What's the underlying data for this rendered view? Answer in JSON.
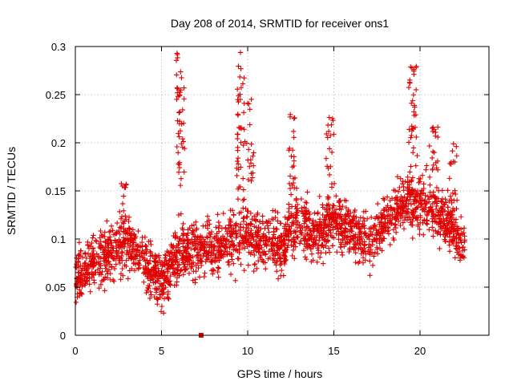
{
  "chart_data": {
    "type": "scatter",
    "title": "Day 208 of 2014, SRMTID for receiver ons1",
    "xlabel": "GPS time / hours",
    "ylabel": "SRMTID / TECUs",
    "xlim": [
      0,
      24
    ],
    "ylim": [
      0,
      0.3
    ],
    "x_ticks": [
      0,
      5,
      10,
      15,
      20
    ],
    "x_tick_labels": [
      "0",
      "5",
      "10",
      "15",
      "20"
    ],
    "y_ticks": [
      0,
      0.05,
      0.1,
      0.15,
      0.2,
      0.25,
      0.3
    ],
    "y_tick_labels": [
      "0",
      "0.05",
      "0.1",
      "0.15",
      "0.2",
      "0.25",
      "0.3"
    ],
    "grid": true,
    "color": "#e00000",
    "marker": "plus",
    "series": [
      {
        "name": "ons1",
        "n_points": 2400,
        "baseline_curve": [
          [
            0,
            0.062
          ],
          [
            0.5,
            0.065
          ],
          [
            1,
            0.075
          ],
          [
            1.5,
            0.078
          ],
          [
            2,
            0.085
          ],
          [
            2.5,
            0.09
          ],
          [
            3,
            0.095
          ],
          [
            3.5,
            0.088
          ],
          [
            4,
            0.075
          ],
          [
            4.5,
            0.068
          ],
          [
            5,
            0.055
          ],
          [
            5.3,
            0.065
          ],
          [
            6,
            0.085
          ],
          [
            7,
            0.088
          ],
          [
            8,
            0.09
          ],
          [
            9,
            0.1
          ],
          [
            10,
            0.105
          ],
          [
            11,
            0.095
          ],
          [
            12,
            0.09
          ],
          [
            12.5,
            0.11
          ],
          [
            13,
            0.115
          ],
          [
            14,
            0.105
          ],
          [
            15,
            0.12
          ],
          [
            16,
            0.11
          ],
          [
            17,
            0.095
          ],
          [
            18,
            0.12
          ],
          [
            19,
            0.135
          ],
          [
            20,
            0.14
          ],
          [
            21,
            0.125
          ],
          [
            22,
            0.11
          ],
          [
            22.6,
            0.09
          ]
        ],
        "spread": 0.028,
        "spikes": [
          {
            "x": 6.1,
            "y_low": 0.15,
            "y_high": 0.295,
            "count": 45
          },
          {
            "x": 9.6,
            "y_low": 0.14,
            "y_high": 0.295,
            "count": 45
          },
          {
            "x": 10.1,
            "y_low": 0.16,
            "y_high": 0.26,
            "count": 20
          },
          {
            "x": 12.6,
            "y_low": 0.12,
            "y_high": 0.23,
            "count": 30
          },
          {
            "x": 14.8,
            "y_low": 0.13,
            "y_high": 0.23,
            "count": 25
          },
          {
            "x": 19.6,
            "y_low": 0.15,
            "y_high": 0.29,
            "count": 40
          },
          {
            "x": 20.8,
            "y_low": 0.16,
            "y_high": 0.22,
            "count": 20
          },
          {
            "x": 2.9,
            "y_low": 0.1,
            "y_high": 0.16,
            "count": 15
          },
          {
            "x": 21.9,
            "y_low": 0.14,
            "y_high": 0.2,
            "count": 15
          }
        ],
        "highlighted_points": [
          {
            "x": 7.3,
            "y": 0.0
          }
        ]
      }
    ]
  }
}
